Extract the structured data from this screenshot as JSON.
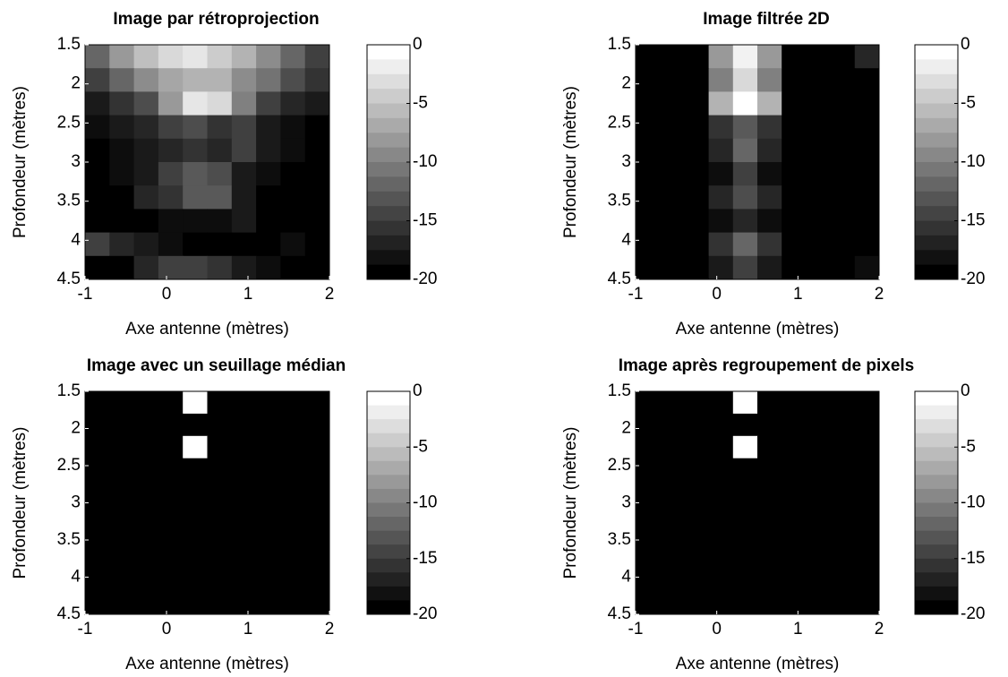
{
  "chart_data": [
    {
      "type": "heatmap",
      "title": "Image par rétroprojection",
      "xlabel": "Axe antenne (mètres)",
      "ylabel": "Profondeur (mètres)",
      "xlim": [
        -1,
        2
      ],
      "ylim": [
        1.5,
        4.5
      ],
      "xticks": [
        -1,
        0,
        1,
        2
      ],
      "yticks": [
        1.5,
        2,
        2.5,
        3,
        3.5,
        4,
        4.5
      ],
      "clim": [
        -20,
        0
      ],
      "cticks": [
        0,
        -5,
        -10,
        -15,
        -20
      ],
      "colormap": "gray",
      "z": [
        [
          -12,
          -8,
          -5,
          -3,
          -2,
          -4,
          -6,
          -9,
          -12,
          -15
        ],
        [
          -15,
          -12,
          -9,
          -7,
          -6,
          -6,
          -9,
          -11,
          -14,
          -16
        ],
        [
          -18,
          -16,
          -14,
          -8,
          -2,
          -3,
          -10,
          -15,
          -17,
          -18
        ],
        [
          -19,
          -18,
          -17,
          -15,
          -14,
          -16,
          -15,
          -18,
          -19,
          -20
        ],
        [
          -20,
          -19,
          -18,
          -17,
          -16,
          -17,
          -15,
          -18,
          -19,
          -20
        ],
        [
          -20,
          -19,
          -18,
          -15,
          -13,
          -14,
          -18,
          -19,
          -20,
          -20
        ],
        [
          -20,
          -20,
          -17,
          -16,
          -13,
          -13,
          -18,
          -20,
          -20,
          -20
        ],
        [
          -20,
          -20,
          -20,
          -19,
          -19,
          -19,
          -18,
          -20,
          -20,
          -20
        ],
        [
          -15,
          -17,
          -18,
          -19,
          -20,
          -20,
          -20,
          -20,
          -19,
          -20
        ],
        [
          -20,
          -20,
          -17,
          -15,
          -15,
          -16,
          -18,
          -19,
          -20,
          -20
        ]
      ]
    },
    {
      "type": "heatmap",
      "title": "Image filtrée 2D",
      "xlabel": "Axe antenne (mètres)",
      "ylabel": "Profondeur (mètres)",
      "xlim": [
        -1,
        2
      ],
      "ylim": [
        1.5,
        4.5
      ],
      "xticks": [
        -1,
        0,
        1,
        2
      ],
      "yticks": [
        1.5,
        2,
        2.5,
        3,
        3.5,
        4,
        4.5
      ],
      "clim": [
        -20,
        0
      ],
      "cticks": [
        0,
        -5,
        -10,
        -15,
        -20
      ],
      "colormap": "gray",
      "z": [
        [
          -20,
          -20,
          -20,
          -8,
          -1,
          -8,
          -20,
          -20,
          -20,
          -17
        ],
        [
          -20,
          -20,
          -20,
          -10,
          -3,
          -10,
          -20,
          -20,
          -20,
          -20
        ],
        [
          -20,
          -20,
          -20,
          -6,
          0,
          -6,
          -20,
          -20,
          -20,
          -20
        ],
        [
          -20,
          -20,
          -20,
          -16,
          -13,
          -16,
          -20,
          -20,
          -20,
          -20
        ],
        [
          -20,
          -20,
          -20,
          -17,
          -12,
          -17,
          -20,
          -20,
          -20,
          -20
        ],
        [
          -20,
          -20,
          -20,
          -19,
          -15,
          -19,
          -20,
          -20,
          -20,
          -20
        ],
        [
          -20,
          -20,
          -20,
          -17,
          -14,
          -17,
          -20,
          -20,
          -20,
          -20
        ],
        [
          -20,
          -20,
          -20,
          -19,
          -17,
          -19,
          -20,
          -20,
          -20,
          -20
        ],
        [
          -20,
          -20,
          -20,
          -16,
          -12,
          -16,
          -20,
          -20,
          -20,
          -20
        ],
        [
          -20,
          -20,
          -20,
          -18,
          -15,
          -18,
          -20,
          -20,
          -20,
          -19
        ]
      ]
    },
    {
      "type": "heatmap",
      "title": "Image avec un seuillage médian",
      "xlabel": "Axe antenne (mètres)",
      "ylabel": "Profondeur (mètres)",
      "xlim": [
        -1,
        2
      ],
      "ylim": [
        1.5,
        4.5
      ],
      "xticks": [
        -1,
        0,
        1,
        2
      ],
      "yticks": [
        1.5,
        2,
        2.5,
        3,
        3.5,
        4,
        4.5
      ],
      "clim": [
        -20,
        0
      ],
      "cticks": [
        0,
        -5,
        -10,
        -15,
        -20
      ],
      "colormap": "gray",
      "z": [
        [
          -20,
          -20,
          -20,
          -20,
          0,
          -20,
          -20,
          -20,
          -20,
          -20
        ],
        [
          -20,
          -20,
          -20,
          -20,
          -20,
          -20,
          -20,
          -20,
          -20,
          -20
        ],
        [
          -20,
          -20,
          -20,
          -20,
          0,
          -20,
          -20,
          -20,
          -20,
          -20
        ],
        [
          -20,
          -20,
          -20,
          -20,
          -20,
          -20,
          -20,
          -20,
          -20,
          -20
        ],
        [
          -20,
          -20,
          -20,
          -20,
          -20,
          -20,
          -20,
          -20,
          -20,
          -20
        ],
        [
          -20,
          -20,
          -20,
          -20,
          -20,
          -20,
          -20,
          -20,
          -20,
          -20
        ],
        [
          -20,
          -20,
          -20,
          -20,
          -20,
          -20,
          -20,
          -20,
          -20,
          -20
        ],
        [
          -20,
          -20,
          -20,
          -20,
          -20,
          -20,
          -20,
          -20,
          -20,
          -20
        ],
        [
          -20,
          -20,
          -20,
          -20,
          -20,
          -20,
          -20,
          -20,
          -20,
          -20
        ],
        [
          -20,
          -20,
          -20,
          -20,
          -20,
          -20,
          -20,
          -20,
          -20,
          -20
        ]
      ]
    },
    {
      "type": "heatmap",
      "title": "Image après regroupement de pixels",
      "xlabel": "Axe antenne (mètres)",
      "ylabel": "Profondeur (mètres)",
      "xlim": [
        -1,
        2
      ],
      "ylim": [
        1.5,
        4.5
      ],
      "xticks": [
        -1,
        0,
        1,
        2
      ],
      "yticks": [
        1.5,
        2,
        2.5,
        3,
        3.5,
        4,
        4.5
      ],
      "clim": [
        -20,
        0
      ],
      "cticks": [
        0,
        -5,
        -10,
        -15,
        -20
      ],
      "colormap": "gray",
      "z": [
        [
          -20,
          -20,
          -20,
          -20,
          0,
          -20,
          -20,
          -20,
          -20,
          -20
        ],
        [
          -20,
          -20,
          -20,
          -20,
          -20,
          -20,
          -20,
          -20,
          -20,
          -20
        ],
        [
          -20,
          -20,
          -20,
          -20,
          0,
          -20,
          -20,
          -20,
          -20,
          -20
        ],
        [
          -20,
          -20,
          -20,
          -20,
          -20,
          -20,
          -20,
          -20,
          -20,
          -20
        ],
        [
          -20,
          -20,
          -20,
          -20,
          -20,
          -20,
          -20,
          -20,
          -20,
          -20
        ],
        [
          -20,
          -20,
          -20,
          -20,
          -20,
          -20,
          -20,
          -20,
          -20,
          -20
        ],
        [
          -20,
          -20,
          -20,
          -20,
          -20,
          -20,
          -20,
          -20,
          -20,
          -20
        ],
        [
          -20,
          -20,
          -20,
          -20,
          -20,
          -20,
          -20,
          -20,
          -20,
          -20
        ],
        [
          -20,
          -20,
          -20,
          -20,
          -20,
          -20,
          -20,
          -20,
          -20,
          -20
        ],
        [
          -20,
          -20,
          -20,
          -20,
          -20,
          -20,
          -20,
          -20,
          -20,
          -20
        ]
      ]
    }
  ]
}
